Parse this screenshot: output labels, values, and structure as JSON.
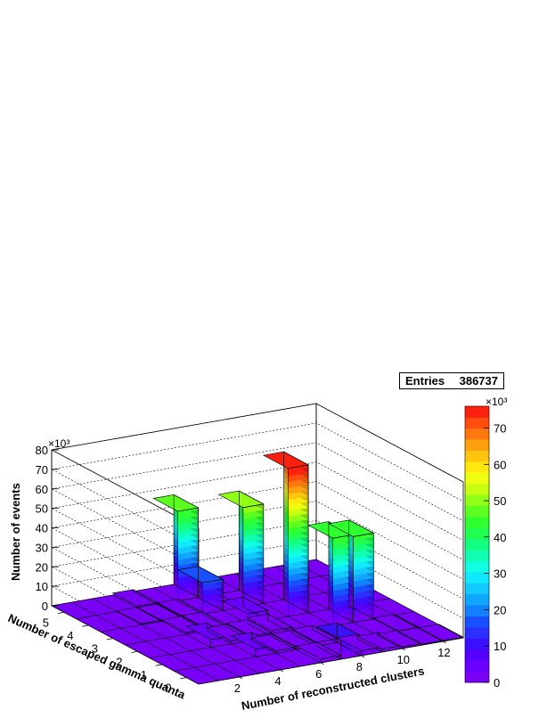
{
  "stats": {
    "entries_label": "Entries",
    "entries_value": "386737"
  },
  "chart_data": {
    "type": "lego3d",
    "zlabel": "Number of events",
    "xlabel": "Number of reconstructed clusters",
    "ylabel": "Number of escaped gamma quanta",
    "z_multiplier": "×10³",
    "colorbar_multiplier": "×10³",
    "xlim": [
      0,
      13
    ],
    "ylim": [
      0,
      6
    ],
    "zlim": [
      0,
      80000
    ],
    "x_ticks": [
      2,
      4,
      6,
      8,
      10,
      12
    ],
    "y_ticks": [
      0,
      1,
      2,
      3,
      4,
      5
    ],
    "z_ticks": [
      0,
      10,
      20,
      30,
      40,
      50,
      60,
      70,
      80
    ],
    "colorbar_ticks": [
      0,
      10,
      20,
      30,
      40,
      50,
      60,
      70
    ],
    "colorbar_max": 76000,
    "bars": [
      {
        "x": 2,
        "y": 4,
        "value": 500
      },
      {
        "x": 3,
        "y": 3,
        "value": 800
      },
      {
        "x": 3,
        "y": 4,
        "value": 400
      },
      {
        "x": 4,
        "y": 2,
        "value": 1500
      },
      {
        "x": 4,
        "y": 3,
        "value": 1000
      },
      {
        "x": 5,
        "y": 2,
        "value": 2000
      },
      {
        "x": 6,
        "y": 2,
        "value": 3000
      },
      {
        "x": 6,
        "y": 1,
        "value": 1500
      },
      {
        "x": 5,
        "y": 1,
        "value": 1200
      },
      {
        "x": 7,
        "y": 1,
        "value": 2000
      },
      {
        "x": 8,
        "y": 0,
        "value": 2500
      },
      {
        "x": 9,
        "y": 0,
        "value": 1500
      },
      {
        "x": 10,
        "y": 0,
        "value": 800
      },
      {
        "x": 11,
        "y": 0,
        "value": 400
      },
      {
        "x": 12,
        "y": 0,
        "value": 300
      },
      {
        "x": 3,
        "y": 5,
        "value": 1000
      },
      {
        "x": 4,
        "y": 4,
        "value": 1000
      },
      {
        "x": 3,
        "y": 2,
        "value": 4000
      },
      {
        "x": 5,
        "y": 4,
        "value": 16000
      },
      {
        "x": 4,
        "y": 1,
        "value": 4000
      },
      {
        "x": 5,
        "y": 5,
        "value": 46000
      },
      {
        "x": 6,
        "y": 3,
        "value": 5000
      },
      {
        "x": 7,
        "y": 4,
        "value": 51000
      },
      {
        "x": 6,
        "y": 0,
        "value": 2000
      },
      {
        "x": 8,
        "y": 3,
        "value": 76000
      },
      {
        "x": 7,
        "y": 0,
        "value": 10000
      },
      {
        "x": 9,
        "y": 2,
        "value": 45000
      },
      {
        "x": 10,
        "y": 2,
        "value": 44000
      },
      {
        "x": 11,
        "y": 1,
        "value": 500
      }
    ],
    "palette": [
      "#7a00f5",
      "#6a00ff",
      "#5500ff",
      "#3c10ff",
      "#2a30ff",
      "#1850ff",
      "#1080ff",
      "#10a6ff",
      "#12c8ff",
      "#10e8ff",
      "#10ffe0",
      "#10ffb0",
      "#14ff80",
      "#20ff50",
      "#30ff30",
      "#5cff20",
      "#90ff18",
      "#c8ff10",
      "#eeff10",
      "#ffe810",
      "#ffc410",
      "#ffa010",
      "#ff7810",
      "#ff4e10",
      "#ff2010"
    ]
  }
}
